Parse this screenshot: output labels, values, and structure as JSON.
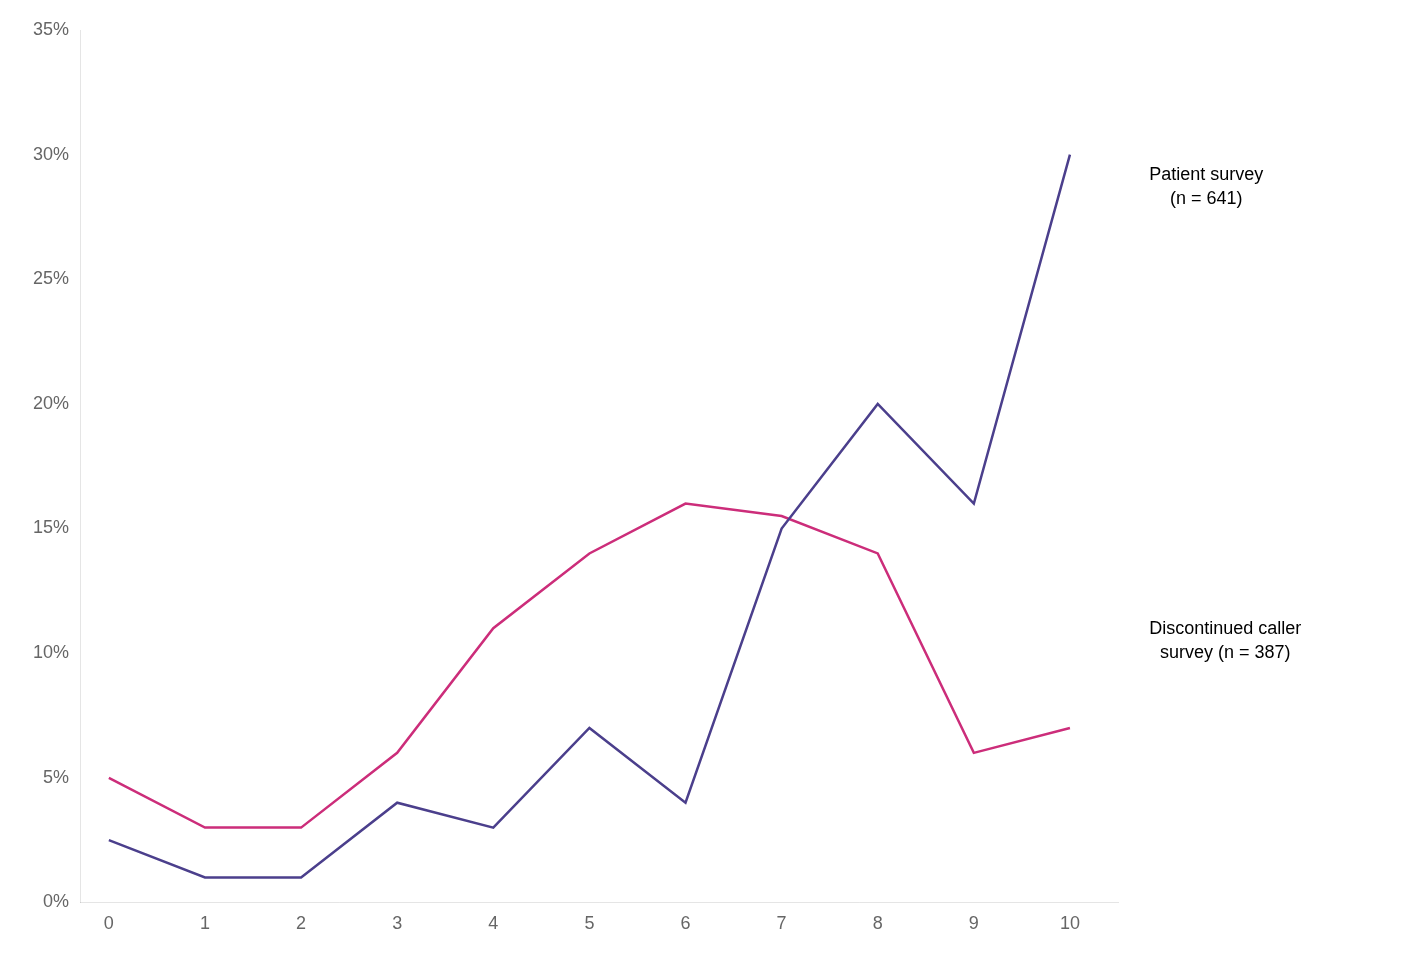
{
  "chart_data": {
    "type": "line",
    "x": [
      0,
      1,
      2,
      3,
      4,
      5,
      6,
      7,
      8,
      9,
      10
    ],
    "series": [
      {
        "color": "#4b3f8c",
        "values": [
          2.5,
          1.0,
          1.0,
          4.0,
          3.0,
          7.0,
          4.0,
          15.0,
          20.0,
          16.0,
          30.0
        ]
      },
      {
        "color": "#cc2d7a",
        "values": [
          5.0,
          3.0,
          3.0,
          6.0,
          11.0,
          14.0,
          16.0,
          15.5,
          14.0,
          6.0,
          7.0
        ]
      }
    ],
    "xlim": [
      -0.3,
      10.5
    ],
    "xticks": [
      0,
      1,
      2,
      3,
      4,
      5,
      6,
      7,
      8,
      9,
      10
    ],
    "ylim": [
      0,
      35
    ],
    "yticks": [
      {
        "value": 0,
        "label": "0%"
      },
      {
        "value": 5,
        "label": "5%"
      },
      {
        "value": 10,
        "label": "10%"
      },
      {
        "value": 15,
        "label": "15%"
      },
      {
        "value": 20,
        "label": "20%"
      },
      {
        "value": 25,
        "label": "25%"
      },
      {
        "value": 30,
        "label": "30%"
      },
      {
        "value": 35,
        "label": "35%"
      }
    ],
    "grid": false,
    "marker": "none",
    "annotations": [
      {
        "text": "Patient survey\n(n = 641)"
      },
      {
        "text": "Discontinued caller\nsurvey (n = 387)"
      }
    ]
  }
}
